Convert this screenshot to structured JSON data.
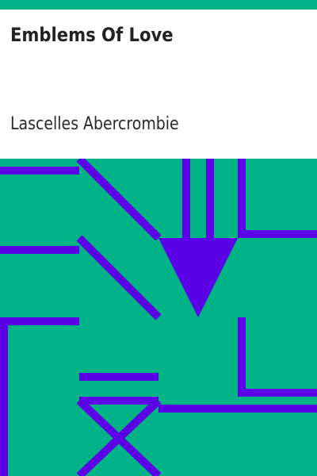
{
  "cover": {
    "title": "Emblems Of Love",
    "author": "Lascelles Abercrombie"
  },
  "colors": {
    "band": "#00b386",
    "pattern_background": "#00b386",
    "pattern_stroke": "#5c00e6",
    "text_panel": "#ffffff"
  }
}
